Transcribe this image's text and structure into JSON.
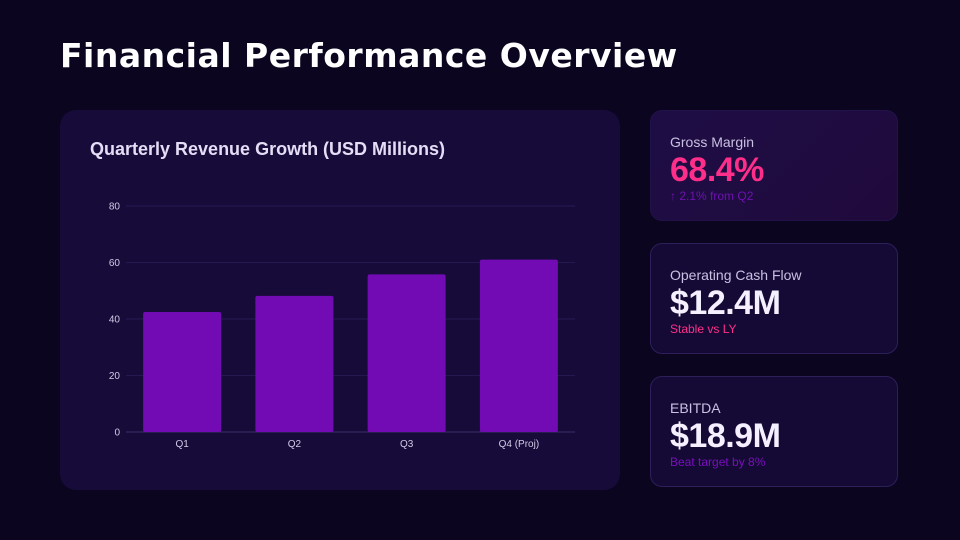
{
  "header": {
    "title": "Financial Performance Overview"
  },
  "colors": {
    "accent_pink": "#ff2e8a",
    "accent_purple": "#7a0ebd",
    "bar": "#730bb5"
  },
  "chart_data": {
    "type": "bar",
    "title": "Quarterly Revenue Growth (USD Millions)",
    "categories": [
      "Q1",
      "Q2",
      "Q3",
      "Q4 (Proj)"
    ],
    "values": [
      42.5,
      48.2,
      55.8,
      61
    ],
    "ylim": [
      0,
      80
    ],
    "yticks": [
      0,
      20,
      40,
      60,
      80
    ],
    "xlabel": "",
    "ylabel": "",
    "grid": true
  },
  "stats": [
    {
      "label": "Gross Margin",
      "value": "68.4%",
      "sub": "↑ 2.1% from Q2"
    },
    {
      "label": "Operating Cash Flow",
      "value": "$12.4M",
      "sub": "Stable vs LY"
    },
    {
      "label": "EBITDA",
      "value": "$18.9M",
      "sub": "Beat target by 8%"
    }
  ]
}
